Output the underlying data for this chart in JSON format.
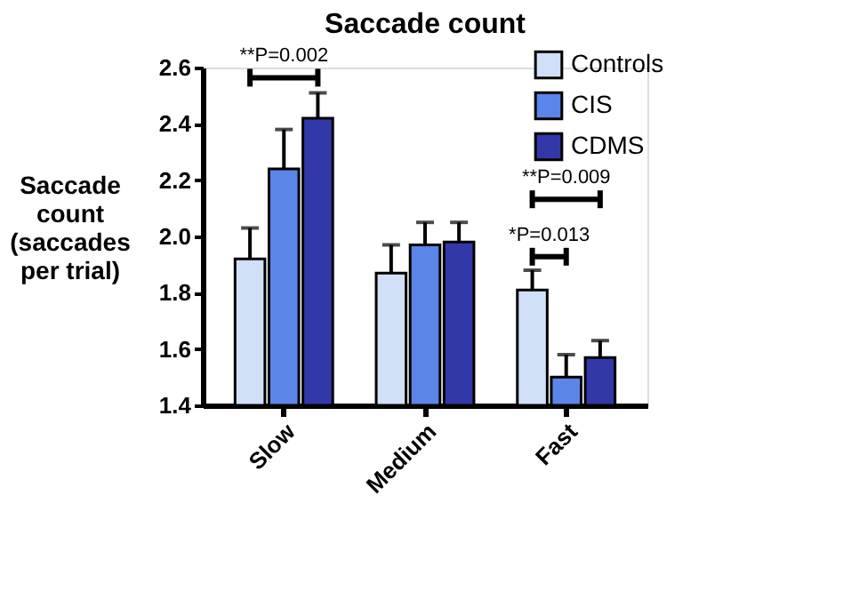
{
  "chart_data": {
    "type": "bar",
    "title": "Saccade count",
    "ylabel": "Saccade count (saccades per trial)",
    "categories": [
      "Slow",
      "Medium",
      "Fast"
    ],
    "series": [
      {
        "name": "Controls",
        "color": "#cfe0f7",
        "values": [
          1.92,
          1.87,
          1.81
        ],
        "errors": [
          0.11,
          0.1,
          0.07
        ]
      },
      {
        "name": "CIS",
        "color": "#5b85e8",
        "values": [
          2.24,
          1.97,
          1.5
        ],
        "errors": [
          0.14,
          0.08,
          0.08
        ]
      },
      {
        "name": "CDMS",
        "color": "#3338a8",
        "values": [
          2.42,
          1.98,
          1.57
        ],
        "errors": [
          0.09,
          0.07,
          0.06
        ]
      }
    ],
    "ylim": [
      1.4,
      2.6
    ],
    "yticks": [
      1.4,
      1.6,
      1.8,
      {
        "value": 2,
        "label": "2.0"
      },
      2.2,
      2.4,
      2.6
    ],
    "annotations": [
      "**P=0.002",
      "**P=0.009",
      "*P=0.013"
    ],
    "legend": "top right",
    "grid": false
  }
}
